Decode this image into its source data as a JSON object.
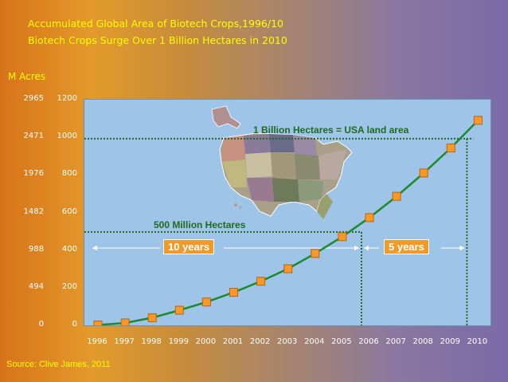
{
  "header": {
    "title": "Accumulated Global Area of Biotech Crops,1996/10",
    "subtitle": "Biotech Crops Surge Over 1 Billion Hectares in 2010"
  },
  "unit_label": "M Acres",
  "source": "Source: Clive James, 2011",
  "colors": {
    "line": "#1a8a2a",
    "marker": "#f59a28",
    "guide": "#1e6b1e",
    "plot_bg": "#9ec4e8",
    "text": "#ffff00"
  },
  "chart_data": {
    "type": "line",
    "title": "Accumulated Global Area of Biotech Crops,1996/10",
    "subtitle": "Biotech Crops Surge Over 1 Billion Hectares in 2010",
    "x": [
      "1996",
      "1997",
      "1998",
      "1999",
      "2000",
      "2001",
      "2002",
      "2003",
      "2004",
      "2005",
      "2006",
      "2007",
      "2008",
      "2009",
      "2010"
    ],
    "series": [
      {
        "values": [
          2,
          13,
          41,
          81,
          125,
          177,
          236,
          303,
          385,
          475,
          577,
          691,
          816,
          950,
          1098
        ]
      }
    ],
    "ylim": [
      0,
      1200
    ],
    "yticks": [
      0,
      200,
      400,
      600,
      800,
      1000,
      1200
    ],
    "secondary_yticks_acres": [
      "0",
      "494",
      "988",
      "1482",
      "1976",
      "2471",
      "2965"
    ],
    "xlabel": "",
    "ylabel": "",
    "grid": false,
    "annotations": {
      "billion": {
        "text": "1 Billion Hectares = USA land area",
        "value": 1000,
        "year": "2010"
      },
      "half_billion": {
        "text": "500 Million Hectares",
        "value": 500,
        "year": "2006"
      },
      "span1": "10 years",
      "span2": "5 years"
    }
  }
}
